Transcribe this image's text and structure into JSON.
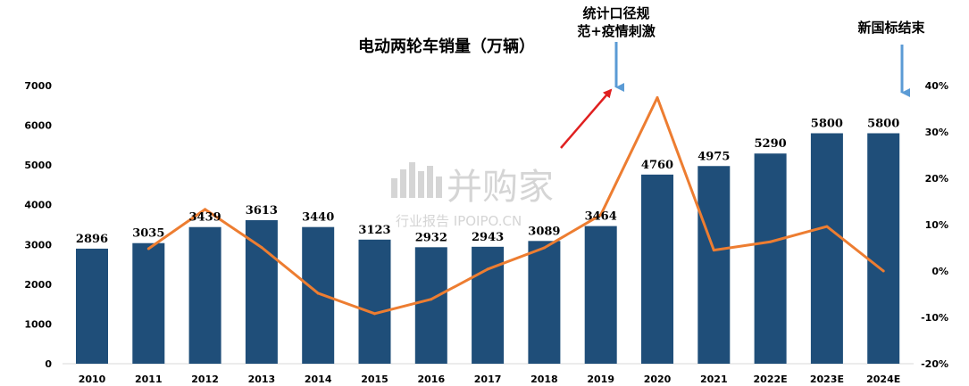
{
  "chart_data": {
    "type": "bar",
    "title": "电动两轮车销量（万辆）",
    "categories": [
      "2010",
      "2011",
      "2012",
      "2013",
      "2014",
      "2015",
      "2016",
      "2017",
      "2018",
      "2019",
      "2020",
      "2021",
      "2022E",
      "2023E",
      "2024E"
    ],
    "series": [
      {
        "values": [
          2896,
          3035,
          3439,
          3613,
          3440,
          3123,
          2932,
          2943,
          3089,
          3464,
          4760,
          4975,
          5290,
          5800,
          5800
        ],
        "type": "bar",
        "color": "#1f4e79"
      },
      {
        "values": [
          null,
          4.8,
          13.3,
          5.1,
          -4.8,
          -9.2,
          -6.1,
          0.4,
          5.0,
          12.1,
          37.4,
          4.5,
          6.3,
          9.6,
          0.0
        ],
        "type": "line",
        "axis": "right",
        "unit": "%",
        "color": "#ed7d31"
      }
    ],
    "ylim": [
      0,
      7000
    ],
    "y_ticks": [
      "0",
      "1000",
      "2000",
      "3000",
      "4000",
      "5000",
      "6000",
      "7000"
    ],
    "y2lim": [
      -20,
      40
    ],
    "y2_ticks": [
      "-20%",
      "-10%",
      "0%",
      "10%",
      "20%",
      "30%",
      "40%"
    ],
    "annotations": [
      {
        "text_line1": "统计口径规",
        "text_line2": "范+疫情刺激",
        "color": "#5b9bd5"
      },
      {
        "text_line1": "新国标结束",
        "color": "#5b9bd5"
      }
    ],
    "watermark": {
      "main": "并购家",
      "sub": "行业报告 IPOIPO.CN"
    }
  }
}
